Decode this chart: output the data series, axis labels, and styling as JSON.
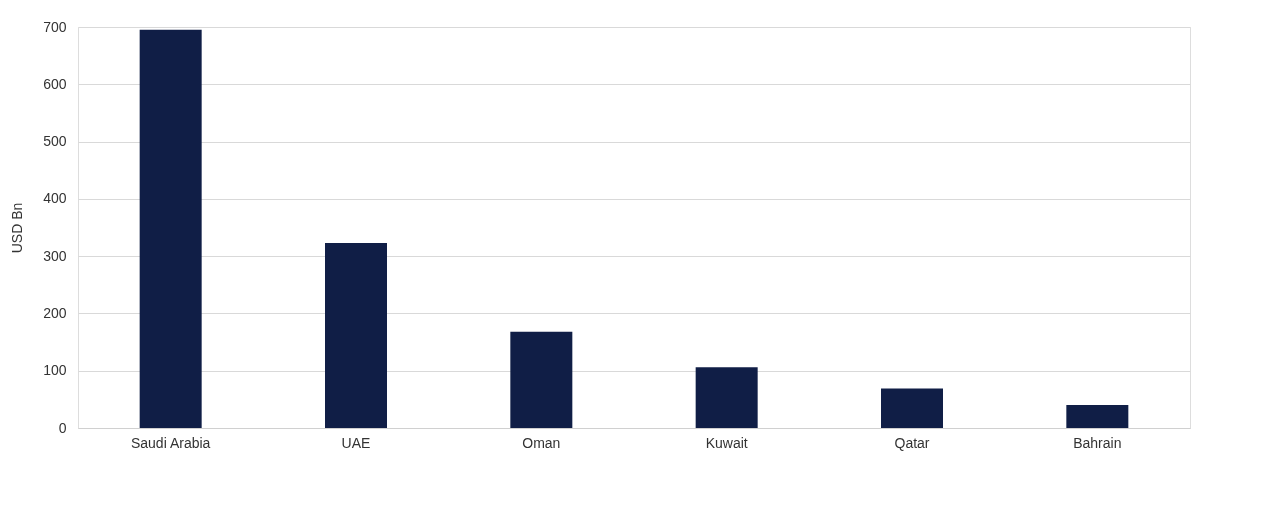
{
  "chart_data": {
    "type": "bar",
    "ylabel": "USD Bn",
    "categories": [
      "Saudi Arabia",
      "UAE",
      "Oman",
      "Kuwait",
      "Qatar",
      "Bahrain"
    ],
    "values": [
      695,
      323,
      168,
      106,
      69,
      40
    ],
    "color": "#101e46",
    "ylim": [
      0,
      700
    ],
    "yticks": [
      0,
      100,
      200,
      300,
      400,
      500,
      600,
      700
    ],
    "grid": "y"
  }
}
